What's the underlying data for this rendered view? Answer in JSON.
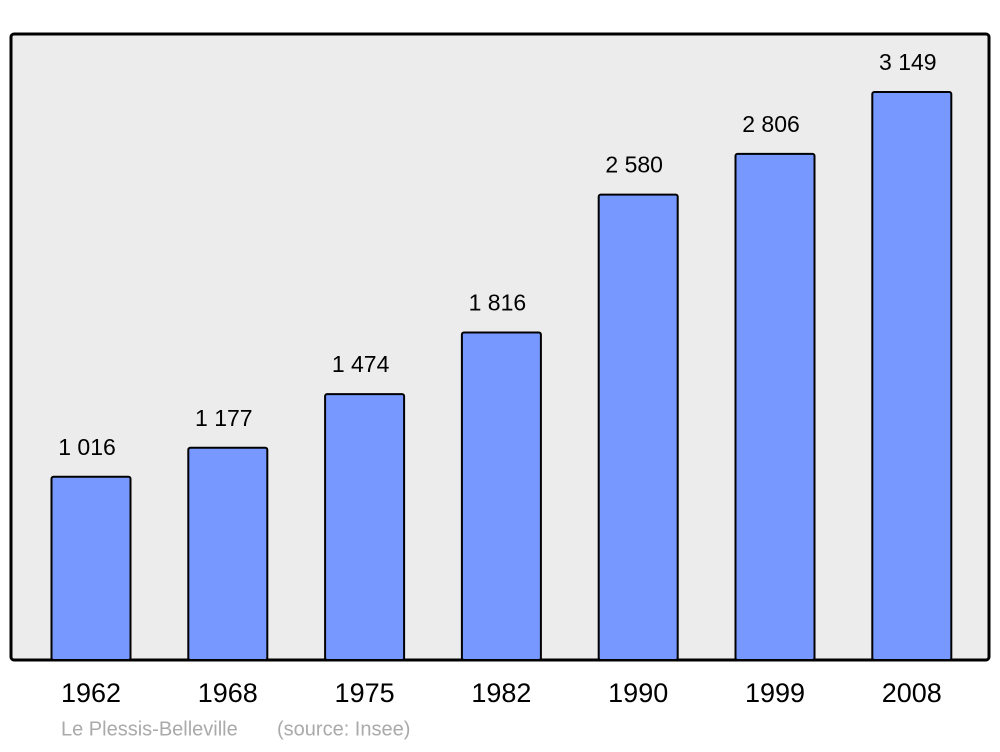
{
  "chart_data": {
    "type": "bar",
    "categories": [
      "1962",
      "1968",
      "1975",
      "1982",
      "1990",
      "1999",
      "2008"
    ],
    "values": [
      1016,
      1177,
      1474,
      1816,
      2580,
      2806,
      3149
    ],
    "value_labels": [
      "1 016",
      "1 177",
      "1 474",
      "1 816",
      "2 580",
      "2 806",
      "3 149"
    ],
    "color": "#7799ff",
    "place": "Le Plessis-Belleville",
    "source": "(source: Insee)"
  }
}
